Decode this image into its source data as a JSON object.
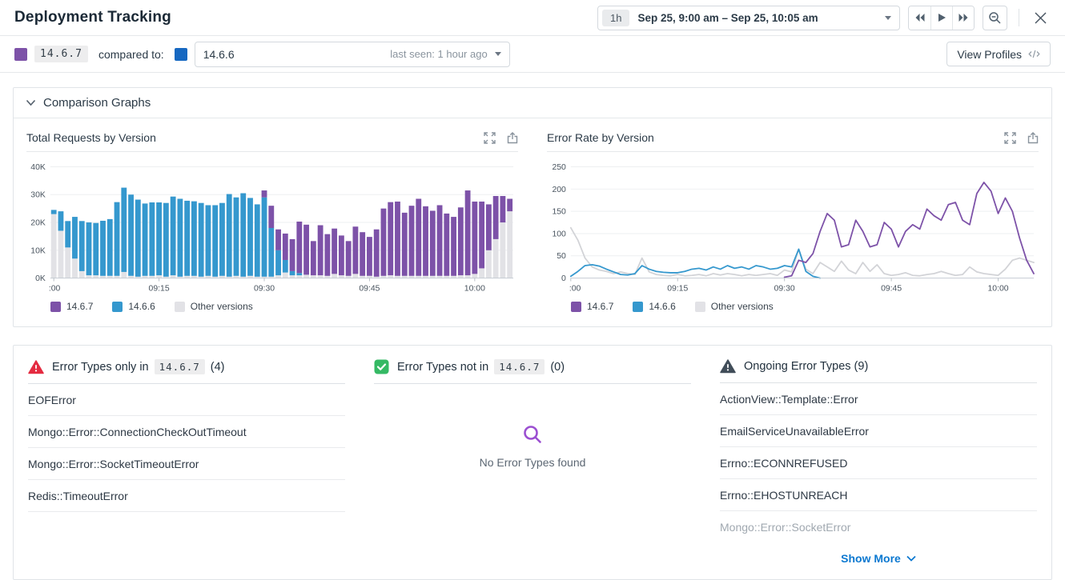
{
  "header": {
    "title": "Deployment Tracking",
    "time_range_badge": "1h",
    "time_range_label": "Sep 25, 9:00 am – Sep 25, 10:05 am"
  },
  "compare_bar": {
    "version_a": "14.6.7",
    "compared_to_label": "compared to:",
    "version_b": "14.6.6",
    "last_seen": "last seen: 1 hour ago",
    "view_profiles_label": "View Profiles"
  },
  "comparison_section": {
    "title": "Comparison Graphs"
  },
  "colors": {
    "version_a_purple": "#7d52a8",
    "version_b_chart_blue": "#3598ce",
    "version_b_swatch_blue": "#1668c1",
    "other_versions_gray": "#e2e2e6",
    "line_gray": "#d2d3d7",
    "link_blue": "#0b78d0",
    "warning_red": "#e42b40",
    "ok_green": "#35b964",
    "ongoing_dark": "#414d59"
  },
  "chart_data": [
    {
      "type": "bar",
      "stacked": true,
      "title": "Total Requests by Version",
      "n_points": 66,
      "x_tick_labels": [
        ":00",
        "09:15",
        "09:30",
        "09:45",
        "10:00"
      ],
      "x_tick_minutes": [
        0,
        15,
        30,
        45,
        60
      ],
      "y_tick_values": [
        0,
        10000,
        20000,
        30000,
        40000
      ],
      "y_tick_labels": [
        "0K",
        "10K",
        "20K",
        "30K",
        "40K"
      ],
      "ylim": [
        0,
        40000
      ],
      "grid": true,
      "legend_position": "bottom",
      "series": [
        {
          "name": "Other versions",
          "color": "#e2e2e6",
          "values": [
            23000,
            17000,
            11000,
            7000,
            2500,
            1000,
            1000,
            800,
            800,
            800,
            2200,
            800,
            500,
            800,
            800,
            1000,
            500,
            1000,
            500,
            800,
            800,
            500,
            800,
            500,
            800,
            500,
            800,
            500,
            800,
            500,
            500,
            500,
            1000,
            2000,
            1000,
            1000,
            1200,
            1000,
            1000,
            800,
            1500,
            1000,
            800,
            1500,
            800,
            800,
            500,
            800,
            1000,
            800,
            800,
            800,
            800,
            800,
            800,
            800,
            800,
            800,
            1000,
            1000,
            1500,
            3500,
            10000,
            14000,
            20000,
            24000
          ]
        },
        {
          "name": "14.6.6",
          "color": "#3598ce",
          "values": [
            1500,
            7000,
            9500,
            15000,
            18000,
            19000,
            18800,
            19800,
            20400,
            26500,
            30300,
            29200,
            27700,
            26000,
            26400,
            26200,
            26500,
            28300,
            28000,
            27000,
            26800,
            26500,
            25400,
            25700,
            26200,
            29700,
            28200,
            30000,
            28000,
            26000,
            28500,
            17500,
            9000,
            4500,
            1500,
            800,
            0,
            0,
            0,
            0,
            0,
            0,
            0,
            0,
            0,
            0,
            0,
            0,
            0,
            0,
            0,
            0,
            0,
            0,
            0,
            0,
            0,
            0,
            0,
            0,
            0,
            0,
            0,
            0,
            0,
            0
          ]
        },
        {
          "name": "14.6.7",
          "color": "#7d52a8",
          "values": [
            0,
            0,
            0,
            0,
            0,
            0,
            0,
            0,
            0,
            0,
            0,
            0,
            0,
            0,
            0,
            0,
            0,
            0,
            0,
            0,
            0,
            0,
            0,
            0,
            0,
            0,
            0,
            0,
            0,
            0,
            2500,
            8000,
            7500,
            9500,
            11500,
            18500,
            18000,
            12300,
            18000,
            15000,
            16300,
            14300,
            12500,
            17000,
            15700,
            14000,
            17000,
            24200,
            26300,
            26700,
            22700,
            25200,
            27700,
            25000,
            23400,
            25400,
            22400,
            21200,
            24400,
            30500,
            26000,
            24000,
            16500,
            15500,
            9500,
            4500
          ]
        }
      ],
      "legend": [
        {
          "label": "14.6.7",
          "color": "#7d52a8"
        },
        {
          "label": "14.6.6",
          "color": "#3598ce"
        },
        {
          "label": "Other versions",
          "color": "#e2e2e6"
        }
      ]
    },
    {
      "type": "line",
      "title": "Error Rate by Version",
      "n_points": 66,
      "x_tick_labels": [
        ":00",
        "09:15",
        "09:30",
        "09:45",
        "10:00"
      ],
      "x_tick_minutes": [
        0,
        15,
        30,
        45,
        60
      ],
      "y_tick_values": [
        0,
        50,
        100,
        150,
        200,
        250
      ],
      "y_tick_labels": [
        "0",
        "50",
        "100",
        "150",
        "200",
        "250"
      ],
      "ylim": [
        0,
        250
      ],
      "grid": true,
      "legend_position": "bottom",
      "series": [
        {
          "name": "Other versions",
          "color": "#d2d3d7",
          "values": [
            113,
            85,
            45,
            25,
            18,
            15,
            10,
            14,
            10,
            8,
            45,
            14,
            8,
            6,
            5,
            8,
            5,
            6,
            8,
            5,
            10,
            7,
            10,
            8,
            5,
            8,
            6,
            8,
            10,
            6,
            18,
            14,
            65,
            20,
            10,
            35,
            25,
            15,
            38,
            18,
            10,
            35,
            15,
            30,
            10,
            6,
            8,
            12,
            6,
            5,
            8,
            10,
            15,
            10,
            6,
            8,
            25,
            14,
            10,
            8,
            6,
            20,
            40,
            45,
            40,
            35
          ]
        },
        {
          "name": "14.6.6",
          "color": "#3598ce",
          "values": [
            4,
            15,
            28,
            30,
            27,
            20,
            14,
            8,
            7,
            10,
            28,
            20,
            15,
            13,
            12,
            12,
            15,
            20,
            22,
            18,
            25,
            20,
            28,
            22,
            25,
            20,
            28,
            25,
            20,
            22,
            28,
            25,
            65,
            15,
            4,
            0,
            null,
            null,
            null,
            null,
            null,
            null,
            null,
            null,
            null,
            null,
            null,
            null,
            null,
            null,
            null,
            null,
            null,
            null,
            null,
            null,
            null,
            null,
            null,
            null,
            null,
            null,
            null,
            null,
            null,
            null
          ]
        },
        {
          "name": "14.6.7",
          "color": "#7d52a8",
          "values": [
            null,
            null,
            null,
            null,
            null,
            null,
            null,
            null,
            null,
            null,
            null,
            null,
            null,
            null,
            null,
            null,
            null,
            null,
            null,
            null,
            null,
            null,
            null,
            null,
            null,
            null,
            null,
            null,
            null,
            null,
            2,
            5,
            40,
            35,
            55,
            105,
            145,
            130,
            70,
            75,
            130,
            105,
            70,
            75,
            125,
            110,
            70,
            105,
            120,
            110,
            155,
            140,
            130,
            165,
            170,
            130,
            120,
            190,
            215,
            195,
            145,
            180,
            150,
            90,
            40,
            10
          ]
        }
      ],
      "legend": [
        {
          "label": "14.6.7",
          "color": "#7d52a8"
        },
        {
          "label": "14.6.6",
          "color": "#3598ce"
        },
        {
          "label": "Other versions",
          "color": "#e2e2e6"
        }
      ]
    }
  ],
  "error_panels": {
    "only_in": {
      "title_prefix": "Error Types only in",
      "version": "14.6.7",
      "count": "(4)",
      "items": [
        "EOFError",
        "Mongo::Error::ConnectionCheckOutTimeout",
        "Mongo::Error::SocketTimeoutError",
        "Redis::TimeoutError"
      ]
    },
    "not_in": {
      "title_prefix": "Error Types not in",
      "version": "14.6.7",
      "count": "(0)",
      "empty_message": "No Error Types found"
    },
    "ongoing": {
      "title": "Ongoing Error Types (9)",
      "items": [
        "ActionView::Template::Error",
        "EmailServiceUnavailableError",
        "Errno::ECONNREFUSED",
        "Errno::EHOSTUNREACH"
      ],
      "muted_item": "Mongo::Error::SocketError",
      "show_more_label": "Show More"
    }
  }
}
